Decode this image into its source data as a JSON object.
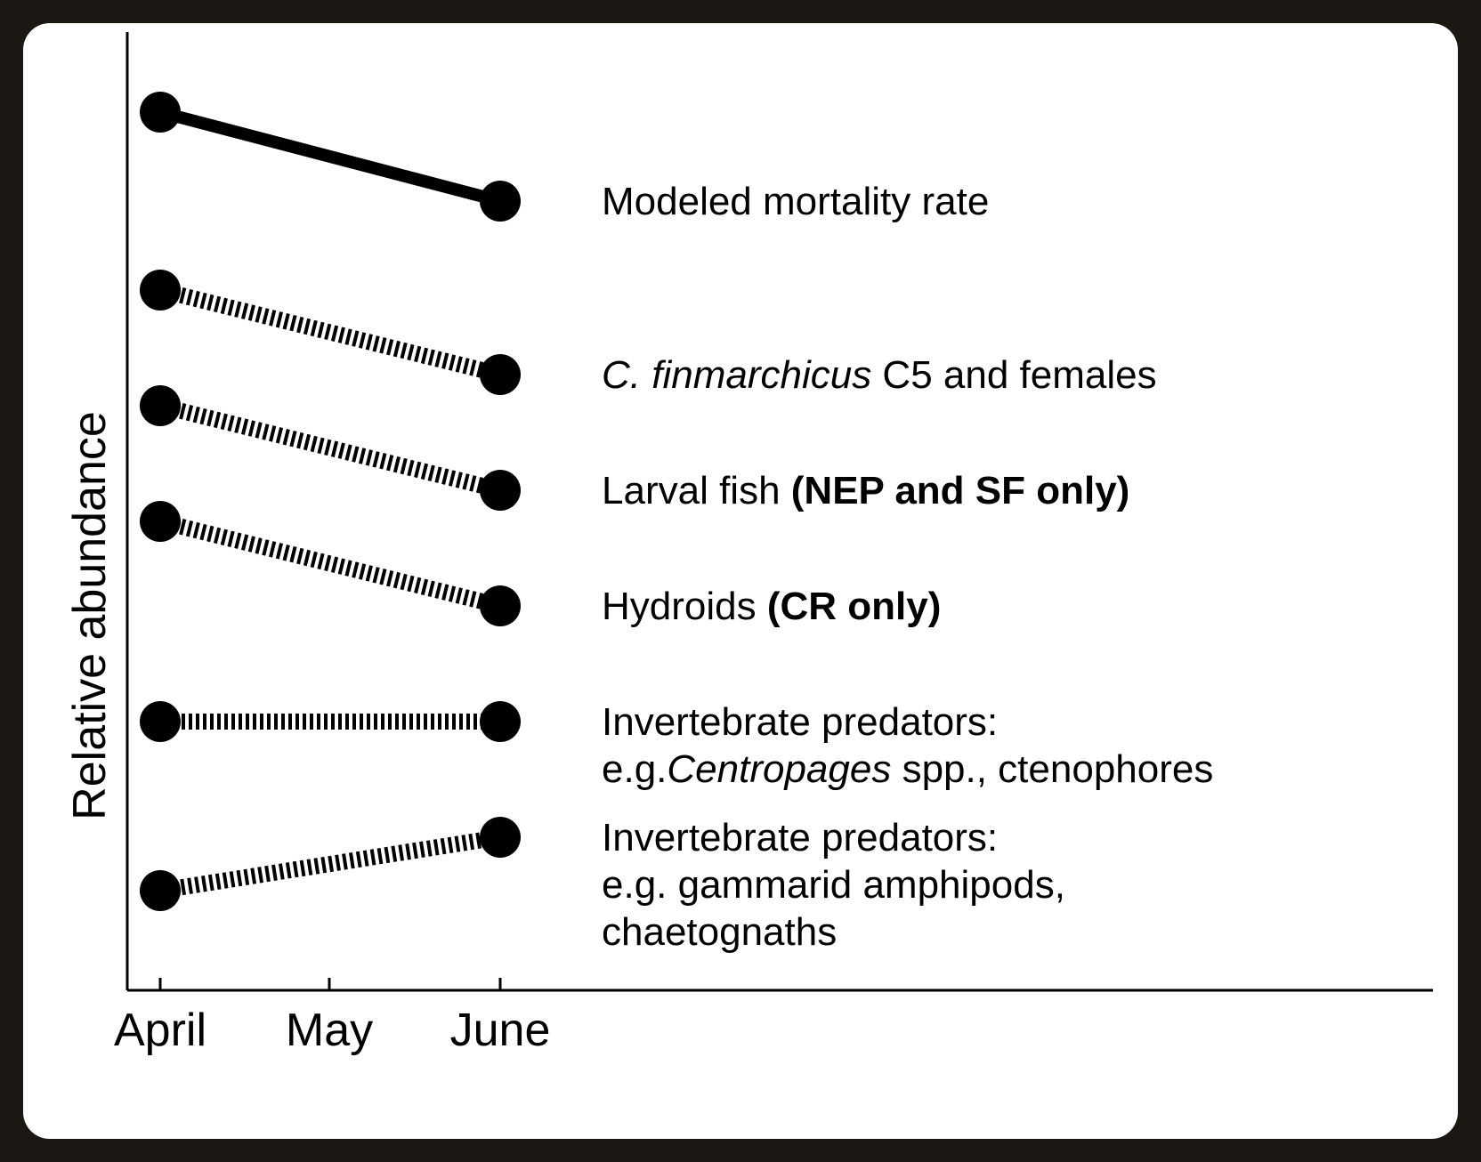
{
  "chart_data": {
    "type": "line",
    "title": "",
    "xlabel": "",
    "ylabel": "Relative abundance",
    "categories": [
      "April",
      "May",
      "June"
    ],
    "series_markers": "filled circles",
    "series": [
      {
        "style": "solid",
        "label_lines": [
          [
            {
              "text": "Modeled mortality rate"
            }
          ]
        ],
        "values": {
          "April": 0.94,
          "June": 0.84
        }
      },
      {
        "style": "dashed",
        "label_lines": [
          [
            {
              "text": "C. finmarchicus",
              "italic": true
            },
            {
              "text": " C5 and females"
            }
          ]
        ],
        "values": {
          "April": 0.74,
          "June": 0.645
        }
      },
      {
        "style": "dashed",
        "label_lines": [
          [
            {
              "text": "Larval fish "
            },
            {
              "text": "(NEP and SF only)",
              "bold": true
            }
          ]
        ],
        "values": {
          "April": 0.61,
          "June": 0.515
        }
      },
      {
        "style": "dashed",
        "label_lines": [
          [
            {
              "text": "Hydroids "
            },
            {
              "text": "(CR only)",
              "bold": true
            }
          ]
        ],
        "values": {
          "April": 0.48,
          "June": 0.385
        }
      },
      {
        "style": "dashed",
        "label_lines": [
          [
            {
              "text": "Invertebrate predators:"
            }
          ],
          [
            {
              "text": "e.g."
            },
            {
              "text": "Centropages",
              "italic": true
            },
            {
              "text": " spp., ctenophores"
            }
          ]
        ],
        "values": {
          "April": 0.255,
          "June": 0.255
        }
      },
      {
        "style": "dashed",
        "label_lines": [
          [
            {
              "text": "Invertebrate predators:"
            }
          ],
          [
            {
              "text": "e.g. gammarid amphipods,"
            }
          ],
          [
            {
              "text": "chaetognaths"
            }
          ]
        ],
        "values": {
          "April": 0.065,
          "June": 0.125
        }
      }
    ],
    "ylim": [
      0,
      1
    ],
    "grid": false,
    "legend": "direct labels right of lines"
  }
}
